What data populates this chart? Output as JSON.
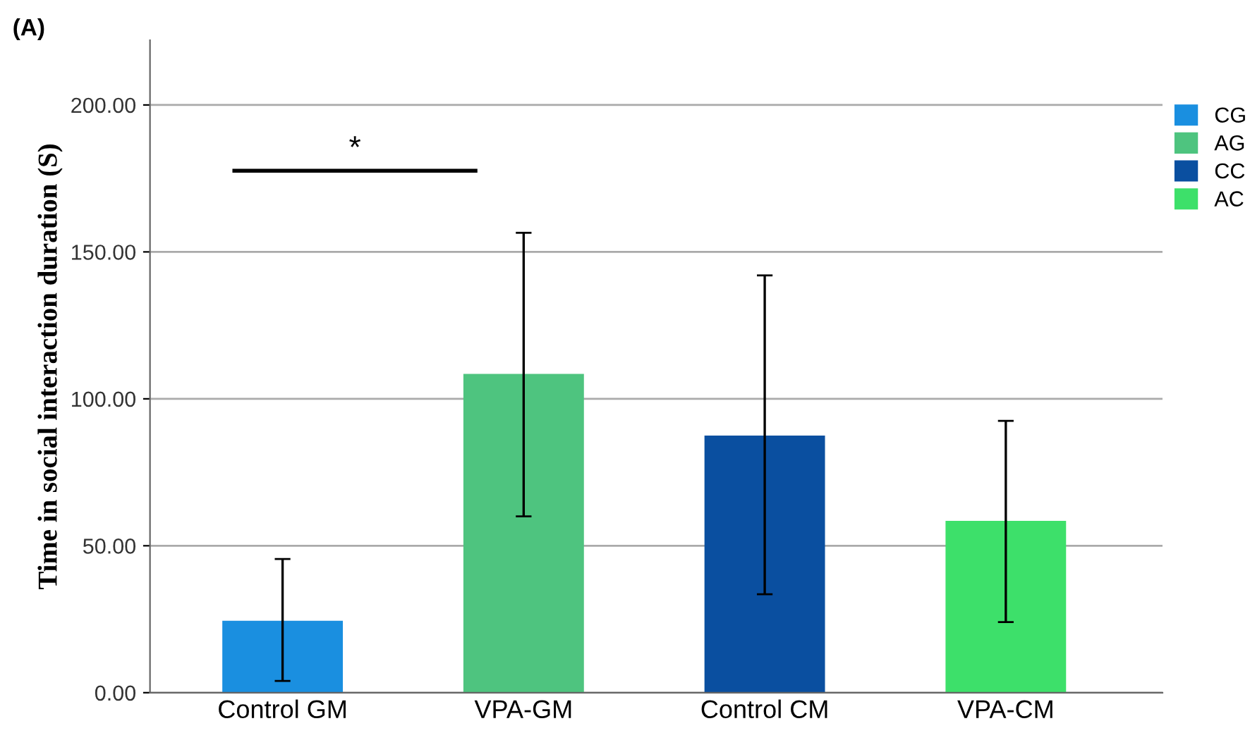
{
  "chart_data": {
    "type": "bar",
    "ylabel": "Time in social interaction duration (S)",
    "categories": [
      "Control GM",
      "VPA-GM",
      "Control CM",
      "VPA-CM"
    ],
    "series": [
      {
        "name": "CG",
        "color": "#1a8fe0",
        "values": [
          24.5,
          null,
          null,
          null
        ],
        "errors": [
          [
            4,
            45.5
          ],
          null,
          null,
          null
        ]
      },
      {
        "name": "AG",
        "color": "#4ec47f",
        "values": [
          null,
          108.5,
          null,
          null
        ],
        "errors": [
          null,
          [
            60,
            156.5
          ],
          null,
          null
        ]
      },
      {
        "name": "CC",
        "color": "#0a4fa0",
        "values": [
          null,
          null,
          87.5,
          null
        ],
        "errors": [
          null,
          null,
          [
            33.5,
            142
          ],
          null
        ]
      },
      {
        "name": "AC",
        "color": "#3de06a",
        "values": [
          null,
          null,
          null,
          58.5
        ],
        "errors": [
          null,
          null,
          null,
          [
            24,
            92.5
          ]
        ]
      }
    ],
    "ylim": [
      0,
      222
    ],
    "yticks": [
      {
        "value": 0,
        "label": "0.00"
      },
      {
        "value": 50,
        "label": "50.00"
      },
      {
        "value": 100,
        "label": "100.00"
      },
      {
        "value": 150,
        "label": "150.00"
      },
      {
        "value": 200,
        "label": "200.00"
      }
    ],
    "grid": "y",
    "legend": "top right",
    "annotations": [
      "(A)",
      "*"
    ]
  }
}
